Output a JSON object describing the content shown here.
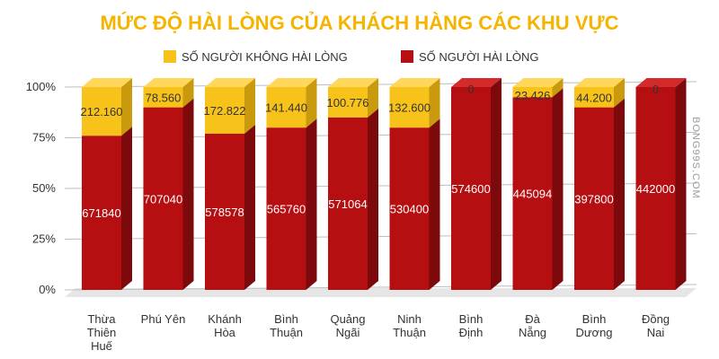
{
  "colors": {
    "title": "#f5b400",
    "unsatisfied": "#f7c21a",
    "unsatisfied_side": "#c99a0e",
    "unsatisfied_top": "#ffd75a",
    "satisfied": "#b50f12",
    "satisfied_side": "#7c0a0c",
    "satisfied_top": "#d42a2c",
    "grid": "#bdbdbd",
    "floor": "#e6e6e6",
    "label_text": "#333333",
    "inner_label_text": "#ffffff"
  },
  "watermark": "BONG99S.COM",
  "chart_data": {
    "type": "bar",
    "stacked": "percent",
    "title": "MỨC ĐỘ HÀI LÒNG CỦA KHÁCH HÀNG CÁC KHU VỰC",
    "legend_position": "top",
    "grid": true,
    "ylim": [
      0,
      100
    ],
    "y_ticks": [
      "0%",
      "25%",
      "50%",
      "75%",
      "100%"
    ],
    "categories": [
      [
        "Thừa",
        "Thiên",
        "Huế"
      ],
      [
        "Phú Yên"
      ],
      [
        "Khánh",
        "Hòa"
      ],
      [
        "Bình",
        "Thuận"
      ],
      [
        "Quảng",
        "Ngãi"
      ],
      [
        "Ninh",
        "Thuận"
      ],
      [
        "Bình",
        "Định"
      ],
      [
        "Đà",
        "Nẵng"
      ],
      [
        "Bình",
        "Dương"
      ],
      [
        "Đồng",
        "Nai"
      ]
    ],
    "series": [
      {
        "name": "SỐ NGƯỜI HÀI LÒNG",
        "values": [
          671840,
          707040,
          578578,
          565760,
          571064,
          530400,
          574600,
          445094,
          397800,
          442000
        ],
        "labels": [
          "671840",
          "707040",
          "578578",
          "565760",
          "571064",
          "530400",
          "574600",
          "445094",
          "397800",
          "442000"
        ]
      },
      {
        "name": "SỐ NGƯỜI KHÔNG HÀI LÒNG",
        "values": [
          212160,
          78560,
          172822,
          141440,
          100776,
          132600,
          0,
          23426,
          44200,
          0
        ],
        "labels": [
          "212.160",
          "78.560",
          "172.822",
          "141.440",
          "100.776",
          "132.600",
          "0",
          "23.426",
          "44.200",
          "0"
        ]
      }
    ],
    "legend_order": [
      "SỐ NGƯỜI KHÔNG HÀI LÒNG",
      "SỐ NGƯỜI HÀI LÒNG"
    ]
  }
}
